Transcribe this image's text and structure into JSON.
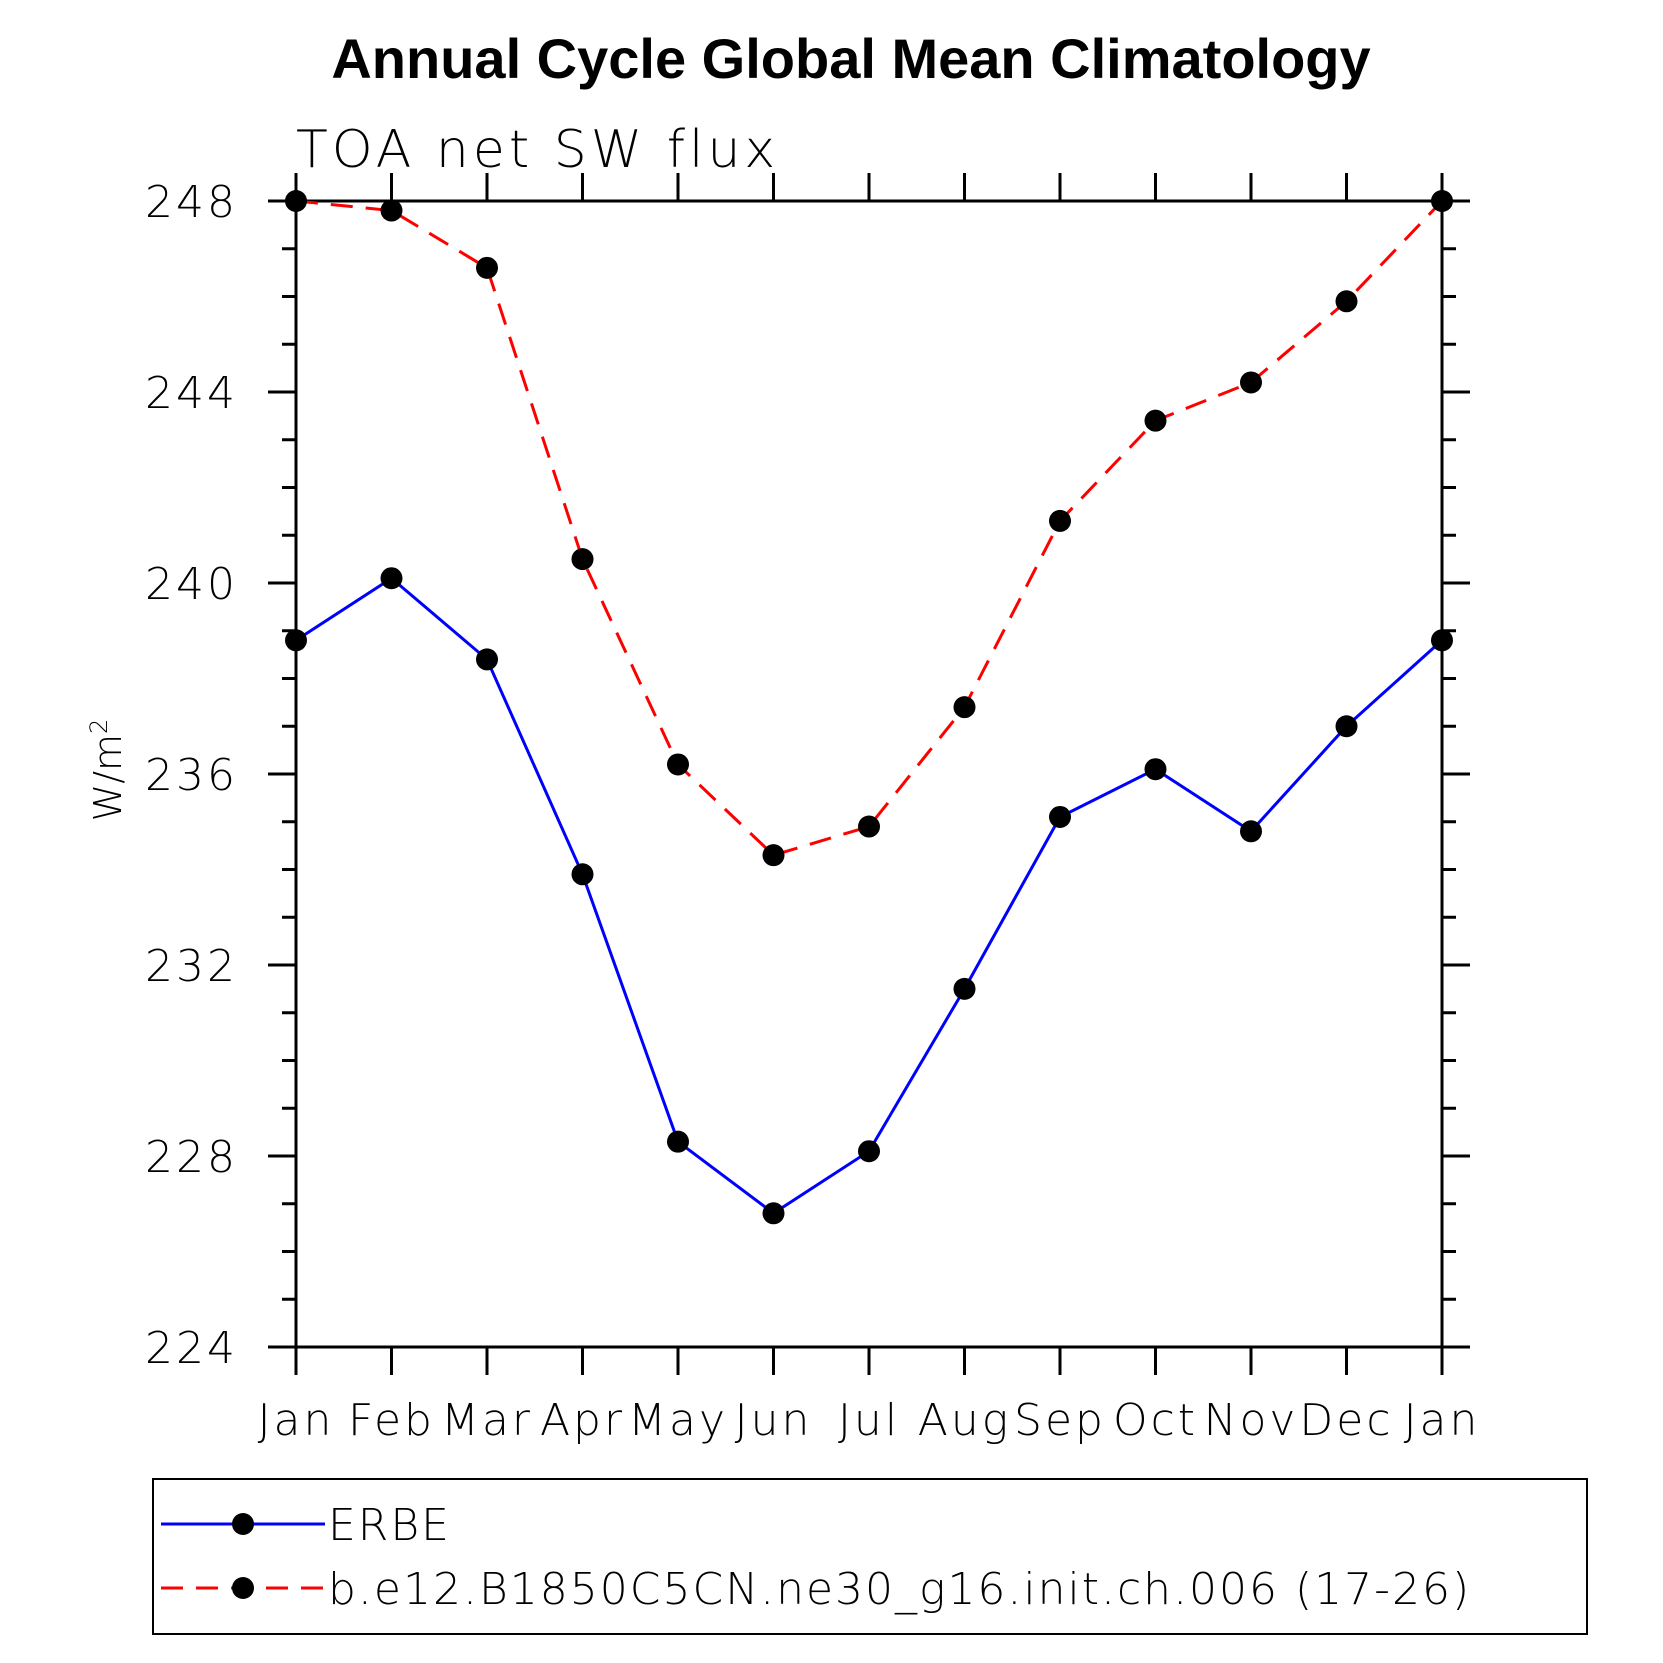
{
  "chart_data": {
    "type": "line",
    "title": "Annual Cycle Global Mean Climatology",
    "subtitle": "TOA net SW flux",
    "xlabel": "",
    "ylabel": "W/m",
    "ylabel_superscript": "2",
    "categories": [
      "Jan",
      "Feb",
      "Mar",
      "Apr",
      "May",
      "Jun",
      "Jul",
      "Aug",
      "Sep",
      "Oct",
      "Nov",
      "Dec",
      "Jan"
    ],
    "ylim": [
      224,
      248
    ],
    "yticks": [
      "224",
      "228",
      "232",
      "236",
      "240",
      "244",
      "248"
    ],
    "grid": false,
    "legend_position": "bottom",
    "series": [
      {
        "name": "ERBE",
        "color": "#0000ff",
        "linestyle": "solid",
        "marker": "filled-circle",
        "values": [
          238.8,
          240.1,
          238.4,
          233.9,
          228.3,
          226.8,
          228.1,
          231.5,
          235.1,
          236.1,
          234.8,
          237.0,
          238.8
        ]
      },
      {
        "name": "b.e12.B1850C5CN.ne30_g16.init.ch.006 (17-26)",
        "color": "#ff0000",
        "linestyle": "dashed",
        "marker": "filled-circle",
        "values": [
          248.0,
          247.8,
          246.6,
          240.5,
          236.2,
          234.3,
          234.9,
          237.4,
          241.3,
          243.4,
          244.2,
          245.9,
          248.0
        ]
      }
    ]
  }
}
